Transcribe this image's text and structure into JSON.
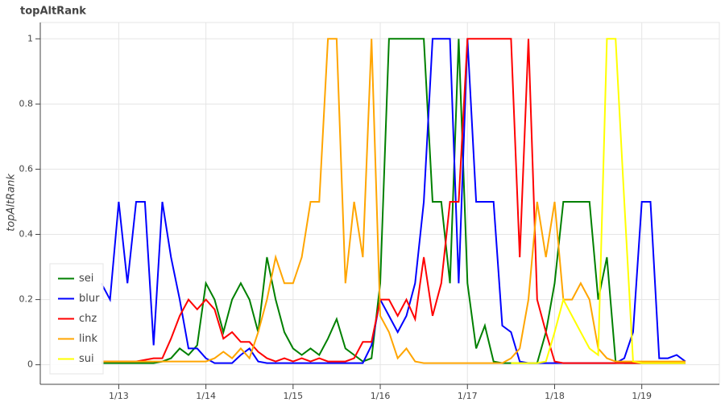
{
  "chart_data": {
    "type": "line",
    "title": "topAltRank",
    "y_label": "topAltRank",
    "x": [
      12.8,
      12.9,
      13.0,
      13.1,
      13.2,
      13.3,
      13.4,
      13.5,
      13.6,
      13.7,
      13.8,
      13.9,
      14.0,
      14.1,
      14.2,
      14.3,
      14.4,
      14.5,
      14.6,
      14.7,
      14.8,
      14.9,
      15.0,
      15.1,
      15.2,
      15.3,
      15.4,
      15.5,
      15.6,
      15.7,
      15.8,
      15.9,
      16.0,
      16.1,
      16.2,
      16.3,
      16.4,
      16.5,
      16.6,
      16.7,
      16.8,
      16.9,
      17.0,
      17.1,
      17.2,
      17.3,
      17.4,
      17.5,
      17.6,
      17.7,
      17.8,
      17.9,
      18.0,
      18.1,
      18.2,
      18.3,
      18.4,
      18.5,
      18.6,
      18.7,
      18.8,
      18.9,
      19.0,
      19.1,
      19.2,
      19.3,
      19.4,
      19.5
    ],
    "series": [
      {
        "name": "sei",
        "color": "#008000",
        "values": [
          0.005,
          0.005,
          0.005,
          0.005,
          0.005,
          0.005,
          0.005,
          0.01,
          0.02,
          0.05,
          0.03,
          0.06,
          0.25,
          0.2,
          0.1,
          0.2,
          0.25,
          0.2,
          0.1,
          0.33,
          0.2,
          0.1,
          0.05,
          0.03,
          0.05,
          0.03,
          0.08,
          0.14,
          0.05,
          0.03,
          0.01,
          0.02,
          0.25,
          1,
          1,
          1,
          1,
          1,
          0.5,
          0.5,
          0.25,
          1,
          0.25,
          0.05,
          0.12,
          0.01,
          0.005,
          0.005,
          0.005,
          0.005,
          0.005,
          0.1,
          0.25,
          0.5,
          0.5,
          0.5,
          0.5,
          0.2,
          0.33,
          0.01,
          0.005,
          0.005,
          0.005,
          0.005,
          0.005,
          0.005,
          0.005,
          0.005
        ]
      },
      {
        "name": "blur",
        "color": "#0000ff",
        "values": [
          0.25,
          0.2,
          0.5,
          0.25,
          0.5,
          0.5,
          0.06,
          0.5,
          0.33,
          0.2,
          0.05,
          0.05,
          0.02,
          0.005,
          0.005,
          0.005,
          0.03,
          0.05,
          0.01,
          0.005,
          0.005,
          0.005,
          0.005,
          0.005,
          0.005,
          0.005,
          0.005,
          0.005,
          0.005,
          0.005,
          0.005,
          0.06,
          0.2,
          0.15,
          0.1,
          0.15,
          0.25,
          0.5,
          1,
          1,
          1,
          0.25,
          1,
          0.5,
          0.5,
          0.5,
          0.12,
          0.1,
          0.01,
          0.005,
          0.005,
          0.005,
          0.005,
          0.005,
          0.005,
          0.005,
          0.005,
          0.005,
          0.005,
          0.005,
          0.02,
          0.1,
          0.5,
          0.5,
          0.02,
          0.02,
          0.03,
          0.01
        ]
      },
      {
        "name": "chz",
        "color": "#ff0000",
        "values": [
          0.01,
          0.01,
          0.01,
          0.01,
          0.01,
          0.015,
          0.02,
          0.02,
          0.08,
          0.15,
          0.2,
          0.17,
          0.2,
          0.17,
          0.08,
          0.1,
          0.07,
          0.07,
          0.04,
          0.02,
          0.01,
          0.02,
          0.01,
          0.02,
          0.01,
          0.02,
          0.01,
          0.01,
          0.01,
          0.02,
          0.07,
          0.07,
          0.2,
          0.2,
          0.15,
          0.2,
          0.14,
          0.33,
          0.15,
          0.25,
          0.5,
          0.5,
          1,
          1,
          1,
          1,
          1,
          1,
          0.33,
          1,
          0.2,
          0.1,
          0.01,
          0.005,
          0.005,
          0.005,
          0.005,
          0.005,
          0.005,
          0.005,
          0.005,
          0.005,
          0.005,
          0.005,
          0.005,
          0.005,
          0.005,
          0.005
        ]
      },
      {
        "name": "link",
        "color": "#ffa500",
        "values": [
          0.01,
          0.01,
          0.01,
          0.01,
          0.01,
          0.01,
          0.01,
          0.01,
          0.01,
          0.01,
          0.01,
          0.01,
          0.01,
          0.02,
          0.04,
          0.02,
          0.05,
          0.02,
          0.1,
          0.2,
          0.33,
          0.25,
          0.25,
          0.33,
          0.5,
          0.5,
          1,
          1,
          0.25,
          0.5,
          0.33,
          1,
          0.15,
          0.1,
          0.02,
          0.05,
          0.01,
          0.005,
          0.005,
          0.005,
          0.005,
          0.005,
          0.005,
          0.005,
          0.005,
          0.005,
          0.005,
          0.02,
          0.05,
          0.2,
          0.5,
          0.33,
          0.5,
          0.2,
          0.2,
          0.25,
          0.2,
          0.05,
          0.02,
          0.01,
          0.01,
          0.01,
          0.01,
          0.01,
          0.01,
          0.01,
          0.01,
          0.01
        ]
      },
      {
        "name": "sui",
        "color": "#ffff00",
        "values": [
          null,
          null,
          null,
          null,
          null,
          null,
          null,
          null,
          null,
          null,
          null,
          null,
          null,
          null,
          null,
          null,
          null,
          null,
          null,
          null,
          null,
          null,
          null,
          null,
          null,
          null,
          null,
          null,
          null,
          null,
          null,
          null,
          null,
          null,
          null,
          null,
          null,
          null,
          null,
          null,
          null,
          null,
          null,
          null,
          null,
          null,
          null,
          0.005,
          0.005,
          0.005,
          0.005,
          0.01,
          0.1,
          0.2,
          0.15,
          0.1,
          0.05,
          0.03,
          1,
          1,
          0.5,
          0.01,
          0.005,
          0.005,
          0.005,
          0.005,
          0.005,
          0.005
        ]
      }
    ],
    "xlim": [
      12.1,
      19.89
    ],
    "xticks": [
      {
        "value": 13,
        "label": "1/13"
      },
      {
        "value": 14,
        "label": "1/14"
      },
      {
        "value": 15,
        "label": "1/15"
      },
      {
        "value": 16,
        "label": "1/16"
      },
      {
        "value": 17,
        "label": "1/17"
      },
      {
        "value": 18,
        "label": "1/18"
      },
      {
        "value": 19,
        "label": "1/19"
      }
    ],
    "ylim": [
      -0.06,
      1.05
    ],
    "yticks": [
      0,
      0.2,
      0.4,
      0.6,
      0.8,
      1
    ],
    "grid": true,
    "legend": "bottom-left"
  }
}
